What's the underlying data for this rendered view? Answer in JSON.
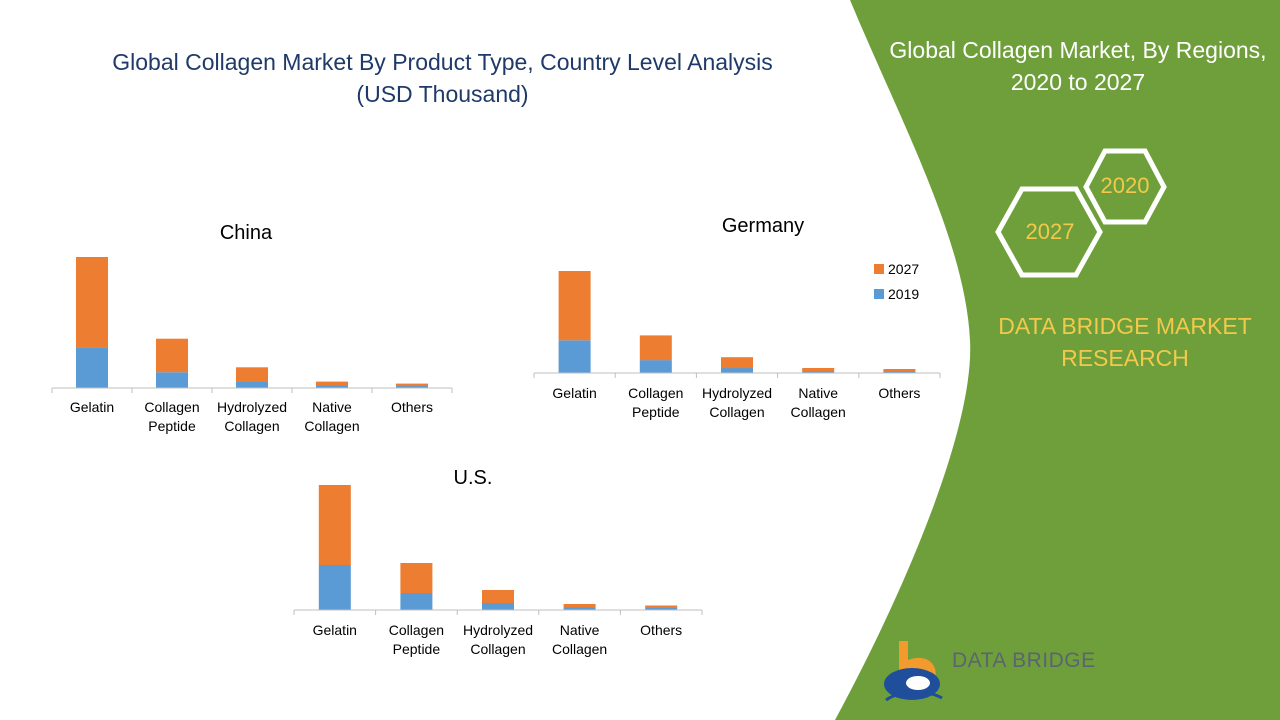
{
  "page": {
    "title_line1": "Global Collagen Market By Product Type, Country Level Analysis",
    "title_line2": "(USD Thousand)"
  },
  "panel": {
    "title_line1": "Global Collagen Market, By Regions,",
    "title_line2": "2020 to 2027",
    "badges": [
      "2020",
      "2027"
    ],
    "brand_line1": "DATA BRIDGE MARKET",
    "brand_line2": "RESEARCH",
    "bg_color": "#6f9f3a"
  },
  "logo": {
    "text": "DATA BRIDGE",
    "icon": "data-bridge-logo-icon"
  },
  "legend": [
    {
      "label": "2027",
      "color": "#ed7d31"
    },
    {
      "label": "2019",
      "color": "#5b9bd5"
    }
  ],
  "chart_data": [
    {
      "type": "bar",
      "stacked": true,
      "title": "China",
      "categories": [
        "Gelatin",
        "Collagen Peptide",
        "Hydrolyzed Collagen",
        "Native Collagen",
        "Others"
      ],
      "category_lines": [
        [
          "Gelatin"
        ],
        [
          "Collagen",
          "Peptide"
        ],
        [
          "Hydrolyzed",
          "Collagen"
        ],
        [
          "Native",
          "Collagen"
        ],
        [
          "Others"
        ]
      ],
      "series": [
        {
          "name": "2019",
          "color": "#5b9bd5",
          "values": [
            41,
            16,
            7,
            2.5,
            2
          ]
        },
        {
          "name": "2027",
          "color": "#ed7d31",
          "values": [
            92,
            34,
            14,
            4,
            2.5
          ]
        }
      ],
      "ylim": [
        0,
        135
      ]
    },
    {
      "type": "bar",
      "stacked": true,
      "title": "Germany",
      "categories": [
        "Gelatin",
        "Collagen Peptide",
        "Hydrolyzed Collagen",
        "Native Collagen",
        "Others"
      ],
      "category_lines": [
        [
          "Gelatin"
        ],
        [
          "Collagen",
          "Peptide"
        ],
        [
          "Hydrolyzed",
          "Collagen"
        ],
        [
          "Native",
          "Collagen"
        ],
        [
          "Others"
        ]
      ],
      "series": [
        {
          "name": "2019",
          "color": "#5b9bd5",
          "values": [
            33,
            13,
            5,
            1.5,
            1.5
          ]
        },
        {
          "name": "2027",
          "color": "#ed7d31",
          "values": [
            70,
            25,
            11,
            3.5,
            2.5
          ]
        }
      ],
      "ylim": [
        0,
        105
      ]
    },
    {
      "type": "bar",
      "stacked": true,
      "title": "U.S.",
      "categories": [
        "Gelatin",
        "Collagen Peptide",
        "Hydrolyzed Collagen",
        "Native Collagen",
        "Others"
      ],
      "category_lines": [
        [
          "Gelatin"
        ],
        [
          "Collagen",
          "Peptide"
        ],
        [
          "Hydrolyzed",
          "Collagen"
        ],
        [
          "Native",
          "Collagen"
        ],
        [
          "Others"
        ]
      ],
      "series": [
        {
          "name": "2019",
          "color": "#5b9bd5",
          "values": [
            45,
            17,
            7,
            2.5,
            2
          ]
        },
        {
          "name": "2027",
          "color": "#ed7d31",
          "values": [
            80,
            30,
            13,
            3.5,
            2.5
          ]
        }
      ],
      "ylim": [
        0,
        125
      ]
    }
  ]
}
